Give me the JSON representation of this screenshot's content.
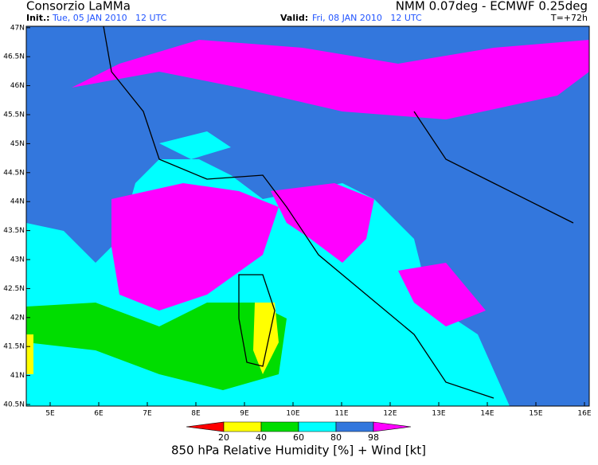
{
  "header": {
    "title": "Consorzio LaMMa",
    "model": "NMM 0.07deg - ECMWF 0.25deg",
    "init_label": "Init.:",
    "init": "Tue, 05 JAN 2010   12 UTC",
    "valid_label": "Valid:",
    "valid": "Fri, 08 JAN 2010   12 UTC",
    "lead": "T=+72h"
  },
  "map": {
    "lon_labels": [
      "5E",
      "6E",
      "7E",
      "8E",
      "9E",
      "10E",
      "11E",
      "12E",
      "13E",
      "14E",
      "15E",
      "16E"
    ],
    "lat_labels": [
      "40.5N",
      "41N",
      "41.5N",
      "42N",
      "42.5N",
      "43N",
      "43.5N",
      "44N",
      "44.5N",
      "45N",
      "45.5N",
      "46N",
      "46.5N",
      "47N"
    ]
  },
  "colorbar": {
    "ticks": [
      20,
      40,
      60,
      80,
      98
    ],
    "colors": [
      "#ff0000",
      "#ffff00",
      "#00dd00",
      "#00ffff",
      "#3377dd",
      "#ff00ff"
    ]
  },
  "caption": "850 hPa Relative Humidity [%] + Wind [kt]"
}
